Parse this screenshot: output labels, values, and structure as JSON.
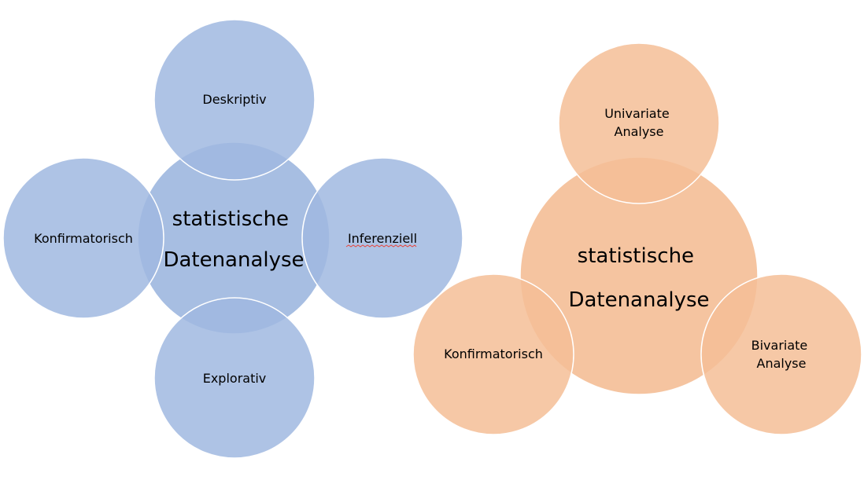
{
  "colors": {
    "blue_fill": "#A0B8E0",
    "blue_border": "#FFFFFF",
    "orange_fill": "#F4BE96",
    "orange_border": "#FFFFFF",
    "spellcheck_underline": "#E8453C"
  },
  "blue_diagram": {
    "center": {
      "lines": [
        "statistische",
        "Datenanalyse"
      ]
    },
    "top": {
      "lines": [
        "Deskriptiv"
      ]
    },
    "left": {
      "lines": [
        "Konfirmatorisch"
      ]
    },
    "right": {
      "lines": [
        "Inferenziell"
      ]
    },
    "bottom": {
      "lines": [
        "Explorativ"
      ]
    }
  },
  "orange_diagram": {
    "center": {
      "lines": [
        "statistische",
        "Datenanalyse"
      ]
    },
    "top": {
      "lines": [
        "Univariate",
        "Analyse"
      ]
    },
    "left": {
      "lines": [
        "Konfirmatorisch"
      ]
    },
    "right": {
      "lines": [
        "Bivariate",
        "Analyse"
      ]
    }
  }
}
